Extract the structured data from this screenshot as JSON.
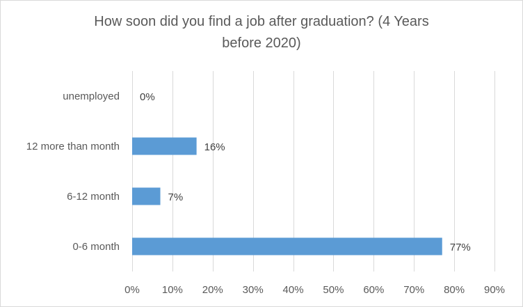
{
  "chart_data": {
    "type": "bar",
    "orientation": "horizontal",
    "title": "How soon did you find a job after graduation? (4 Years before 2020)",
    "title_lines": [
      "How soon did you find a job after graduation? (4 Years",
      "before 2020)"
    ],
    "categories": [
      "0-6 month",
      "6-12 month",
      "12 more than month",
      "unemployed"
    ],
    "values": [
      77,
      7,
      16,
      0
    ],
    "data_labels": [
      "77%",
      "7%",
      "16%",
      "0%"
    ],
    "xlim": [
      0,
      90
    ],
    "xticks": [
      0,
      10,
      20,
      30,
      40,
      50,
      60,
      70,
      80,
      90
    ],
    "xtick_labels": [
      "0%",
      "10%",
      "20%",
      "30%",
      "40%",
      "50%",
      "60%",
      "70%",
      "80%",
      "90%"
    ],
    "xlabel": "",
    "ylabel": "",
    "grid": true,
    "legend": "none",
    "bar_color": "#5b9bd5",
    "grid_color": "#d9d9d9"
  }
}
